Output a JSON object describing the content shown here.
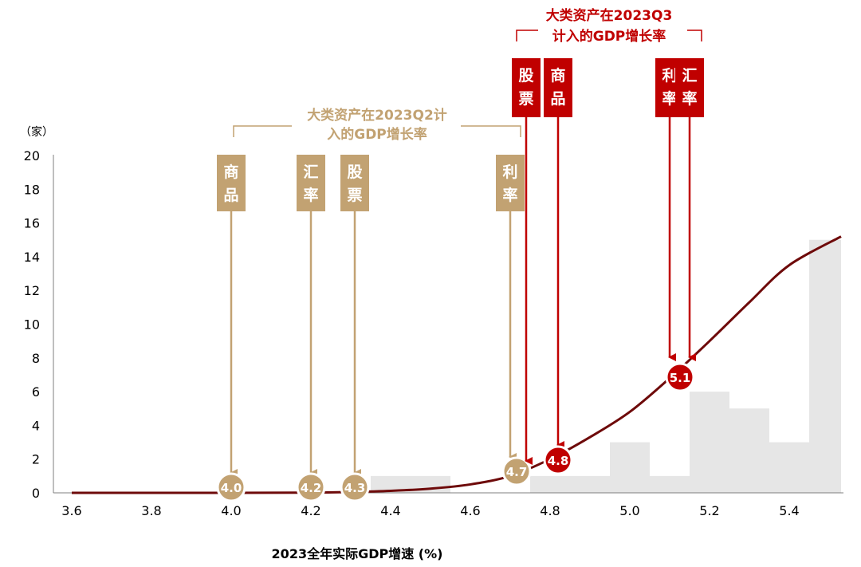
{
  "chart_data": {
    "type": "area",
    "ylabel": "（家）",
    "xlabel": "2023全年实际GDP增速 (%)",
    "xlim": [
      3.6,
      5.53
    ],
    "ylim": [
      0,
      20
    ],
    "x_ticks": [
      "3.6",
      "3.8",
      "4.0",
      "4.2",
      "4.4",
      "4.6",
      "4.8",
      "5.0",
      "5.2",
      "5.4"
    ],
    "y_ticks": [
      "0",
      "2",
      "4",
      "6",
      "8",
      "10",
      "12",
      "14",
      "16",
      "18",
      "20"
    ],
    "grid": false,
    "histogram": [
      {
        "x0": 4.35,
        "x1": 4.55,
        "count": 1
      },
      {
        "x0": 4.55,
        "x1": 4.65,
        "count": 0
      },
      {
        "x0": 4.65,
        "x1": 4.75,
        "count": 0
      },
      {
        "x0": 4.75,
        "x1": 4.85,
        "count": 1
      },
      {
        "x0": 4.85,
        "x1": 4.95,
        "count": 1
      },
      {
        "x0": 4.95,
        "x1": 5.05,
        "count": 3
      },
      {
        "x0": 5.05,
        "x1": 5.15,
        "count": 1
      },
      {
        "x0": 5.15,
        "x1": 5.25,
        "count": 6
      },
      {
        "x0": 5.25,
        "x1": 5.35,
        "count": 5
      },
      {
        "x0": 5.35,
        "x1": 5.45,
        "count": 3
      },
      {
        "x0": 5.45,
        "x1": 5.53,
        "count": 15
      }
    ],
    "cumulative_curve": {
      "x": [
        3.6,
        4.0,
        4.2,
        4.3,
        4.4,
        4.5,
        4.6,
        4.7,
        4.8,
        4.9,
        5.0,
        5.1,
        5.2,
        5.3,
        5.4,
        5.53
      ],
      "y": [
        0,
        0,
        0.01,
        0.05,
        0.12,
        0.25,
        0.5,
        1.0,
        2.0,
        3.3,
        4.8,
        6.8,
        9.0,
        11.3,
        13.5,
        15.2
      ]
    },
    "markers_q2": {
      "title_line1": "大类资产在2023Q2计",
      "title_line2": "入的GDP增长率",
      "color": "#C2A272",
      "items": [
        {
          "label_top": "商",
          "label_bottom": "品",
          "value": "4.0",
          "x": 4.0
        },
        {
          "label_top": "汇",
          "label_bottom": "率",
          "value": "4.2",
          "x": 4.2
        },
        {
          "label_top": "股",
          "label_bottom": "票",
          "value": "4.3",
          "x": 4.31
        },
        {
          "label_top": "利",
          "label_bottom": "率",
          "value": "4.7",
          "x": 4.7
        }
      ]
    },
    "markers_q3": {
      "title_line1": "大类资产在2023Q3",
      "title_line2": "计入的GDP增长率",
      "color": "#C00000",
      "items": [
        {
          "label_top": "股",
          "label_bottom": "票",
          "value": "4.8",
          "x": 4.74
        },
        {
          "label_top": "商",
          "label_bottom": "品",
          "value": "4.8",
          "x": 4.82
        },
        {
          "label_top": "利",
          "label_bottom": "率",
          "value": "5.1",
          "x": 5.1
        },
        {
          "label_top": "汇",
          "label_bottom": "率",
          "value": "5.1",
          "x": 5.15
        }
      ]
    },
    "colors": {
      "bars": "#E6E6E6",
      "curve": "#6E0A0A",
      "axis": "#7F7F7F",
      "text": "#000000"
    }
  }
}
